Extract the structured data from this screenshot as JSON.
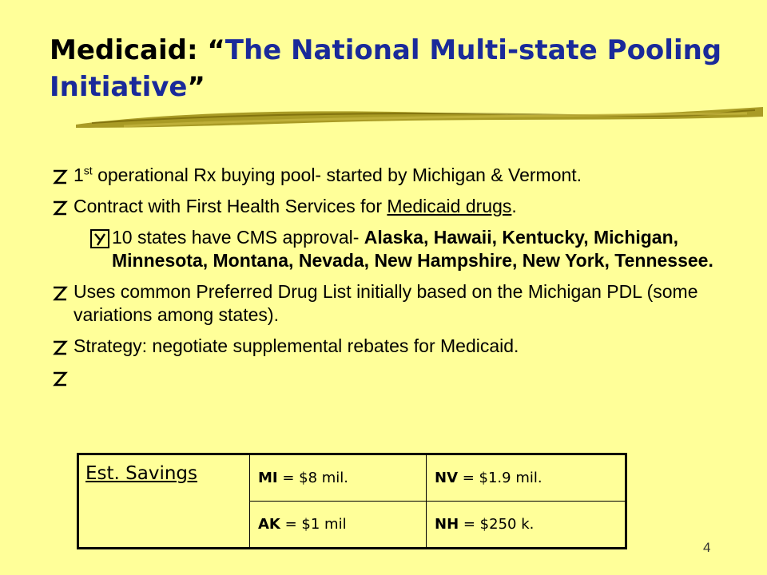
{
  "slide": {
    "title_prefix": "Medicaid: “",
    "title_main": "The National Multi-state Pooling Initiative",
    "title_suffix": "”",
    "page_number": "4"
  },
  "bullets": {
    "b1_pre": "1",
    "b1_sup": "st",
    "b1_rest": " operational Rx buying pool- started by Michigan & Vermont.",
    "b2_pre": "Contract with First Health Services for ",
    "b2_link": "Medicaid drugs",
    "b2_post": ".",
    "b3_pre": "10 states have CMS approval- ",
    "b3_bold": "Alaska, Hawaii, Kentucky, Michigan, Minnesota, Montana, Nevada, New Hampshire, New York, Tennessee.",
    "b4": "Uses common Preferred Drug List initially based on the Michigan PDL (some variations among states).",
    "b5": "Strategy: negotiate supplemental rebates for Medicaid."
  },
  "savings_table": {
    "label": "Est. Savings",
    "rows": [
      [
        {
          "state": "MI",
          "value": " = $8 mil."
        },
        {
          "state": "NV",
          "value": " = $1.9 mil."
        }
      ],
      [
        {
          "state": "AK",
          "value": " = $1 mil"
        },
        {
          "state": "NH",
          "value": " = $250 k."
        }
      ]
    ]
  },
  "icons": {
    "level1_bullet": "z-bullet-icon",
    "level2_bullet": "y-bullet-icon"
  },
  "colors": {
    "background": "#ffff99",
    "title_accent": "#1a2a9a"
  }
}
